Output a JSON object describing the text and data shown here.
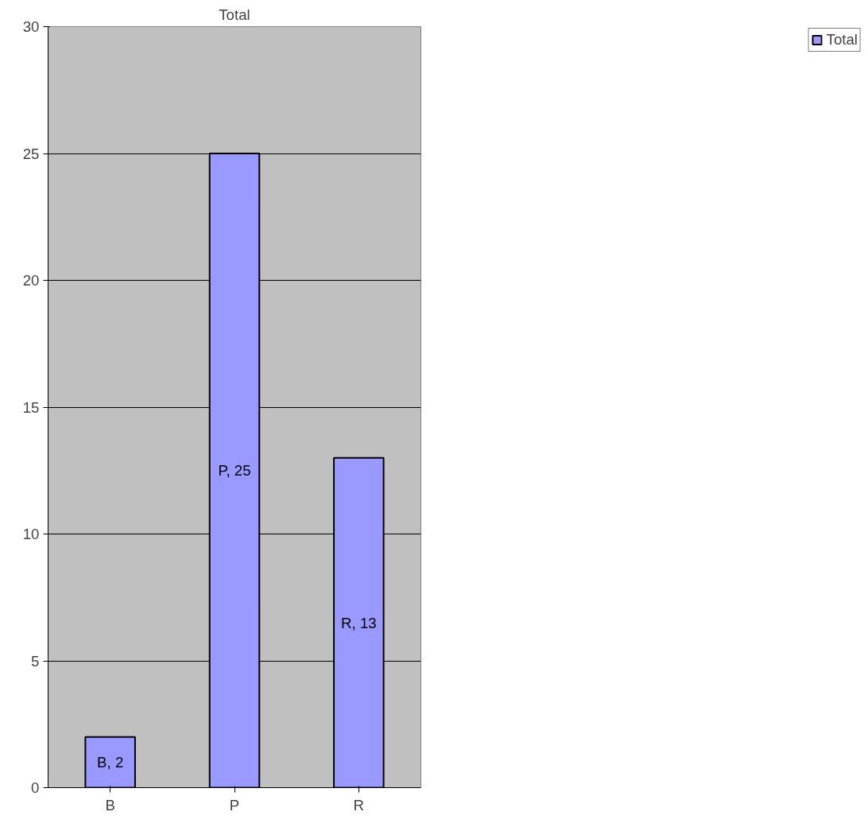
{
  "chart_data": {
    "type": "bar",
    "title": "Total",
    "categories": [
      "B",
      "P",
      "R"
    ],
    "series": [
      {
        "name": "Total",
        "color": "#9999ff",
        "values": [
          2,
          25,
          13
        ],
        "value_labels": [
          "B, 2",
          "P, 25",
          "R, 13"
        ]
      }
    ],
    "ylim": [
      0,
      30
    ],
    "yticks": [
      0,
      5,
      10,
      15,
      20,
      25,
      30
    ],
    "grid": "y",
    "legend": "right"
  }
}
